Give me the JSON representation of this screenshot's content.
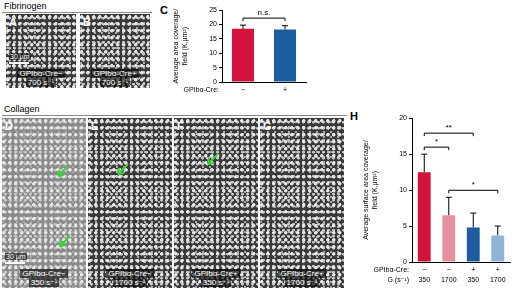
{
  "sections": [
    {
      "title": "Fibrinogen",
      "images": [
        {
          "panel": "A",
          "label": "GPIbα-Cre−",
          "shear": "700 s⁻¹",
          "scale_bar": "30 µm"
        },
        {
          "panel": "B",
          "label": "GPIbα-Cre+",
          "shear": "700 s⁻¹"
        }
      ]
    },
    {
      "title": "Collagen",
      "images": [
        {
          "panel": "D",
          "label": "GPIbα-Cre−",
          "shear": "350 s⁻¹",
          "scale_bar": "30 µm"
        },
        {
          "panel": "E",
          "label": "GPIbα-Cre−",
          "shear": "1700 s⁻¹"
        },
        {
          "panel": "F",
          "label": "GPIbα-Cre+",
          "shear": "350 s⁻¹"
        },
        {
          "panel": "G",
          "label": "GPIbα-Cre+",
          "shear": "1700 s⁻¹"
        }
      ]
    }
  ],
  "chart_data": [
    {
      "panel": "C",
      "type": "bar",
      "y_label": "Average area coverage/ field (K,µm²)",
      "x_rows": [
        {
          "label": "GPIbα-Cre:",
          "values": [
            "−",
            "+"
          ]
        }
      ],
      "values": [
        18.5,
        18.3
      ],
      "errors": [
        1.3,
        1.3
      ],
      "colors": [
        "#d2143c",
        "#1d5c9e"
      ],
      "ylim": [
        0,
        25
      ],
      "yticks": [
        0,
        5,
        10,
        15,
        20,
        25
      ],
      "grid": false,
      "annotations": [
        {
          "from": 0,
          "to": 1,
          "label": "n.s."
        }
      ]
    },
    {
      "panel": "H",
      "type": "bar",
      "y_label": "Average surface area coverage/field (K,µm²)",
      "x_rows": [
        {
          "label": "GPIbα-Cre:",
          "values": [
            "−",
            "−",
            "+",
            "+"
          ]
        },
        {
          "label": "G (s⁻¹)",
          "values": [
            "350",
            "1700",
            "350",
            "1700"
          ]
        }
      ],
      "values": [
        12.5,
        6.5,
        4.8,
        3.7
      ],
      "errors": [
        2.5,
        2.5,
        2.0,
        1.3
      ],
      "colors": [
        "#d2143c",
        "#e8909e",
        "#1d5c9e",
        "#8fb3d9"
      ],
      "ylim": [
        0,
        20
      ],
      "yticks": [
        0,
        5,
        10,
        15,
        20
      ],
      "grid": false,
      "annotations": [
        {
          "from": 0,
          "to": 1,
          "label": "*"
        },
        {
          "from": 0,
          "to": 2,
          "label": "**"
        },
        {
          "from": 1,
          "to": 3,
          "label": "*"
        }
      ]
    }
  ]
}
